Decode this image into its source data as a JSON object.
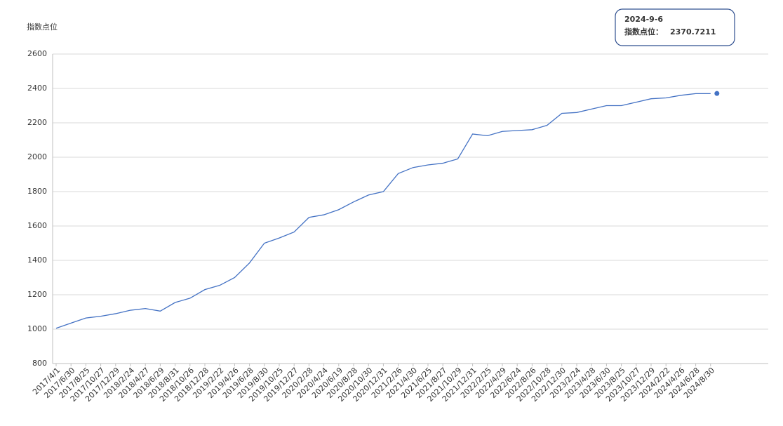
{
  "chart_data": {
    "type": "line",
    "y_axis_label": "指数点位",
    "categories": [
      "2017/4/1",
      "2017/6/30",
      "2017/8/25",
      "2017/10/27",
      "2017/12/29",
      "2018/2/24",
      "2018/4/27",
      "2018/6/29",
      "2018/8/31",
      "2018/10/26",
      "2018/12/28",
      "2019/2/22",
      "2019/4/26",
      "2019/6/28",
      "2019/8/30",
      "2019/10/25",
      "2019/12/27",
      "2020/2/28",
      "2020/4/24",
      "2020/6/19",
      "2020/8/28",
      "2020/10/30",
      "2020/12/31",
      "2021/2/26",
      "2021/4/30",
      "2021/6/25",
      "2021/8/27",
      "2021/10/29",
      "2021/12/31",
      "2022/2/25",
      "2022/4/29",
      "2022/6/24",
      "2022/8/26",
      "2022/10/28",
      "2022/12/30",
      "2023/2/24",
      "2023/4/28",
      "2023/6/30",
      "2023/8/25",
      "2023/10/27",
      "2023/12/29",
      "2024/2/22",
      "2024/4/26",
      "2024/6/28",
      "2024/8/30"
    ],
    "series": [
      {
        "name": "指数点位",
        "color": "#4472c4",
        "values": [
          1005,
          1035,
          1065,
          1075,
          1090,
          1110,
          1120,
          1105,
          1155,
          1180,
          1230,
          1255,
          1300,
          1385,
          1500,
          1530,
          1565,
          1650,
          1665,
          1695,
          1740,
          1780,
          1800,
          1905,
          1940,
          1955,
          1965,
          1990,
          2135,
          2125,
          2150,
          2155,
          2160,
          2185,
          2255,
          2260,
          2280,
          2300,
          2300,
          2320,
          2340,
          2345,
          2360,
          2370,
          2370
        ]
      }
    ],
    "ylim": [
      800,
      2600
    ],
    "yticks": [
      800,
      1000,
      1200,
      1400,
      1600,
      1800,
      2000,
      2200,
      2400,
      2600
    ],
    "grid": true,
    "tooltip": {
      "date": "2024-9-6",
      "label": "指数点位：",
      "value": 2370.7211
    }
  }
}
